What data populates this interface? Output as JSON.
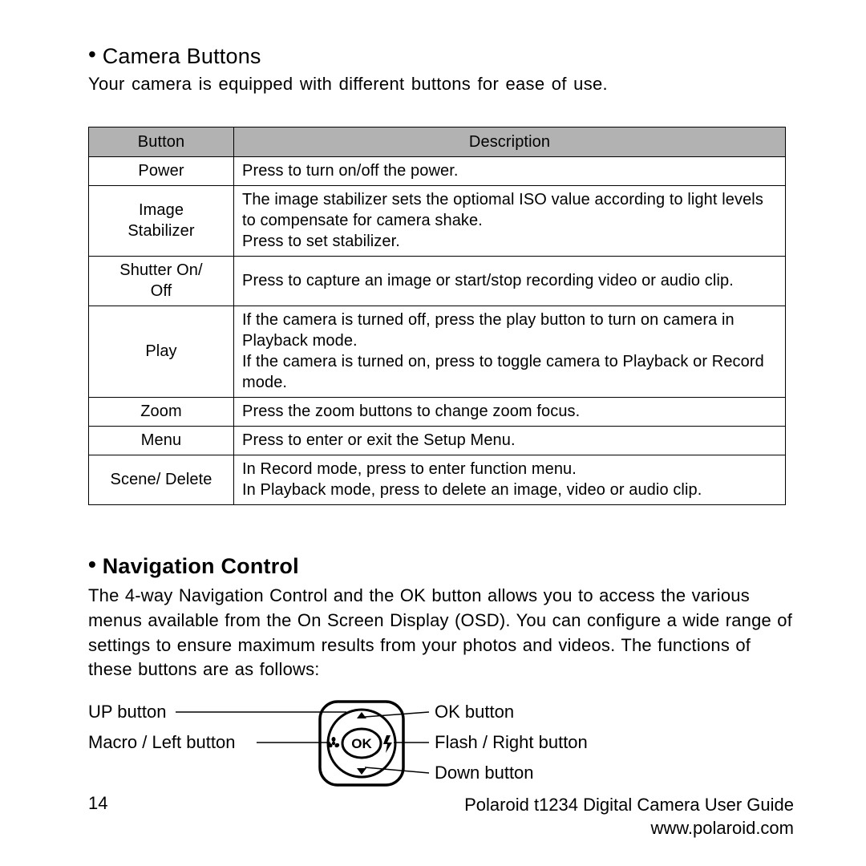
{
  "section1": {
    "heading": "Camera Buttons",
    "intro": "Your camera is equipped with different buttons for ease of use."
  },
  "table": {
    "header_col1": "Button",
    "header_col2": "Description",
    "header_bg": "#b2b2b2",
    "border_color": "#000000",
    "font_size": 20,
    "rows": [
      {
        "button": "Power",
        "desc": "Press to turn on/off the power."
      },
      {
        "button": "Image\nStabilizer",
        "desc": "The image stabilizer sets the optiomal ISO value according to light levels to compensate for camera shake.\nPress to set stabilizer."
      },
      {
        "button": "Shutter On/\nOff",
        "desc": "Press to capture an image or start/stop recording video or audio clip."
      },
      {
        "button": "Play",
        "desc": "If the camera is turned off, press the play button to turn on camera in Playback mode.\nIf the camera is turned on, press to toggle camera to Playback or Record mode."
      },
      {
        "button": "Zoom",
        "desc": "Press the zoom buttons to change zoom focus."
      },
      {
        "button": "Menu",
        "desc": "Press to enter or exit the Setup Menu."
      },
      {
        "button": "Scene/ Delete",
        "desc": "In Record mode, press to enter function menu.\nIn Playback mode, press to delete an image, video or audio clip."
      }
    ]
  },
  "section2": {
    "heading": "Navigation Control",
    "intro": "The 4-way Navigation Control and the OK button allows you to access the various menus available from the On Screen Display (OSD). You can configure a wide range of settings to ensure maximum results from your photos and videos. The functions of these buttons are as follows:"
  },
  "diagram": {
    "labels": {
      "up": "UP button",
      "macro": "Macro / Left button",
      "ok": "OK button",
      "flash": "Flash / Right button",
      "down": "Down button"
    },
    "ok_text": "OK",
    "stroke_color": "#000000",
    "stroke_width": 3
  },
  "footer": {
    "page": "14",
    "title": "Polaroid t1234 Digital Camera User Guide",
    "url": "www.polaroid.com"
  },
  "colors": {
    "background": "#ffffff",
    "text": "#000000"
  },
  "typography": {
    "heading_fontsize": 27,
    "body_fontsize": 22,
    "table_fontsize": 20,
    "font_family": "Arial"
  }
}
